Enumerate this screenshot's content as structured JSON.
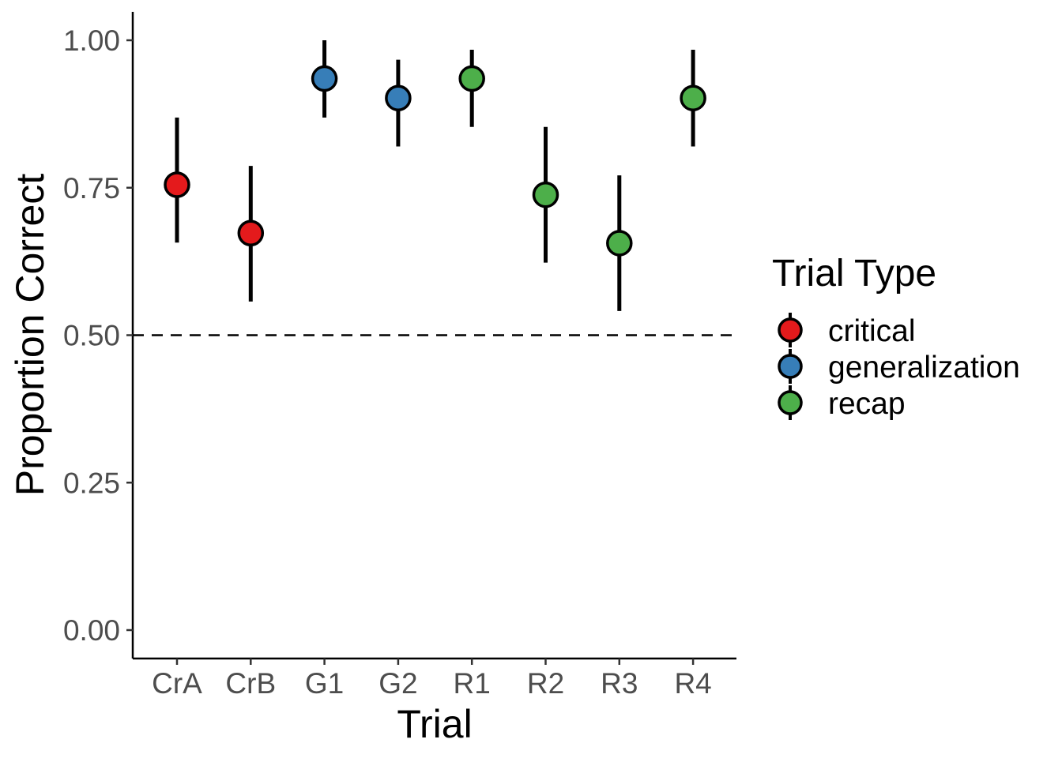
{
  "chart_data": {
    "type": "scatter",
    "title": "",
    "xlabel": "Trial",
    "ylabel": "Proportion Correct",
    "ylim": [
      0,
      1
    ],
    "y_ticks": [
      "0.00",
      "0.25",
      "0.50",
      "0.75",
      "1.00"
    ],
    "y_tick_values": [
      0,
      0.25,
      0.5,
      0.75,
      1.0
    ],
    "reference_line": 0.5,
    "categories": [
      "CrA",
      "CrB",
      "G1",
      "G2",
      "R1",
      "R2",
      "R3",
      "R4"
    ],
    "points": [
      {
        "x": "CrA",
        "type": "critical",
        "y": 0.755,
        "lower": 0.657,
        "upper": 0.869
      },
      {
        "x": "CrB",
        "type": "critical",
        "y": 0.673,
        "lower": 0.557,
        "upper": 0.787
      },
      {
        "x": "G1",
        "type": "generalization",
        "y": 0.935,
        "lower": 0.869,
        "upper": 1.0
      },
      {
        "x": "G2",
        "type": "generalization",
        "y": 0.902,
        "lower": 0.82,
        "upper": 0.967
      },
      {
        "x": "R1",
        "type": "recap",
        "y": 0.935,
        "lower": 0.853,
        "upper": 0.984
      },
      {
        "x": "R2",
        "type": "recap",
        "y": 0.738,
        "lower": 0.623,
        "upper": 0.853
      },
      {
        "x": "R3",
        "type": "recap",
        "y": 0.656,
        "lower": 0.541,
        "upper": 0.771
      },
      {
        "x": "R4",
        "type": "recap",
        "y": 0.902,
        "lower": 0.82,
        "upper": 0.984
      }
    ],
    "legend": {
      "title": "Trial Type",
      "position": "right",
      "entries": [
        {
          "label": "critical",
          "color": "#E41A1C"
        },
        {
          "label": "generalization",
          "color": "#377EB8"
        },
        {
          "label": "recap",
          "color": "#4DAF4A"
        }
      ]
    }
  }
}
